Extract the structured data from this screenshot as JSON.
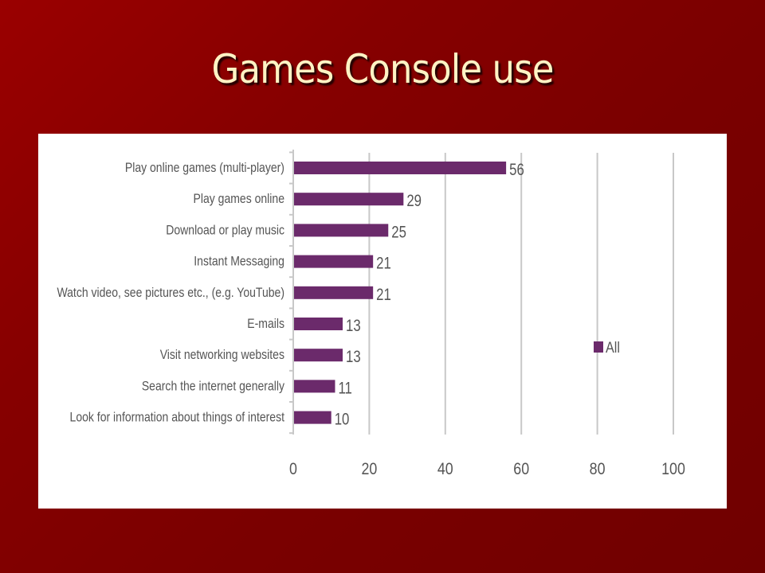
{
  "slide": {
    "title": "Games Console use"
  },
  "colors": {
    "background": "#7a0000",
    "title": "#fff3c4",
    "bar": "#6b2a6b",
    "panel": "#ffffff",
    "grid": "#c8c8c8",
    "text": "#555555"
  },
  "chart_data": {
    "type": "bar",
    "orientation": "horizontal",
    "categories": [
      "Play online games (multi-player)",
      "Play games online",
      "Download or play music",
      "Instant Messaging",
      "Watch video, see pictures etc., (e.g. YouTube)",
      "E-mails",
      "Visit networking websites",
      "Search the internet generally",
      "Look for information about things of interest"
    ],
    "series": [
      {
        "name": "All",
        "values": [
          56,
          29,
          25,
          21,
          21,
          13,
          13,
          11,
          10
        ]
      }
    ],
    "xlim": [
      0,
      100
    ],
    "xticks": [
      "0",
      "20",
      "40",
      "60",
      "80",
      "100"
    ],
    "grid": true,
    "legend": "right",
    "data_labels": true
  }
}
